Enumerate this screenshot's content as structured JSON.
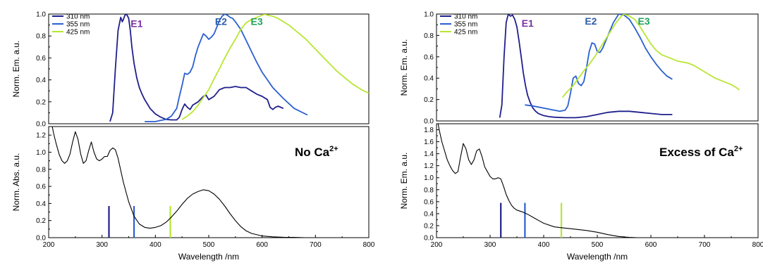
{
  "colors": {
    "series_310": "#1f1f8c",
    "series_355": "#2a5fd0",
    "series_425": "#b8e632",
    "E1": "#7a2fa3",
    "E2": "#2e5ea8",
    "E3": "#1fa15a",
    "abs": "#000000"
  },
  "legend": [
    "310 nm",
    "355 nm",
    "425 nm"
  ],
  "chart_data": [
    {
      "id": "left-top",
      "type": "line",
      "ylabel": "Norm. Em. a.u.",
      "xlim": [
        200,
        800
      ],
      "ylim": [
        0,
        1.0
      ],
      "yticks": [
        "0.0",
        "0.2",
        "0.4",
        "0.6",
        "0.8",
        "1.0"
      ],
      "peak_labels": [
        {
          "text": "E1",
          "x": 365,
          "y": 0.88,
          "color": "E1"
        },
        {
          "text": "E2",
          "x": 523,
          "y": 0.9,
          "color": "E2"
        },
        {
          "text": "E3",
          "x": 590,
          "y": 0.9,
          "color": "E3"
        }
      ],
      "series": [
        {
          "name": "310 nm",
          "color": "series_310",
          "x": [
            315,
            320,
            325,
            330,
            335,
            338,
            340,
            343,
            346,
            350,
            353,
            356,
            360,
            365,
            370,
            375,
            380,
            385,
            390,
            400,
            410,
            420,
            430,
            440,
            445,
            450,
            455,
            460,
            465,
            470,
            480,
            490,
            495,
            500,
            510,
            520,
            530,
            540,
            550,
            560,
            570,
            580,
            590,
            600,
            610,
            615,
            620,
            625,
            630,
            640
          ],
          "y": [
            0.02,
            0.1,
            0.5,
            0.85,
            0.97,
            0.93,
            0.95,
            0.99,
            1.0,
            0.96,
            0.85,
            0.7,
            0.55,
            0.42,
            0.33,
            0.27,
            0.22,
            0.18,
            0.14,
            0.09,
            0.06,
            0.04,
            0.035,
            0.035,
            0.06,
            0.13,
            0.18,
            0.15,
            0.13,
            0.17,
            0.2,
            0.25,
            0.26,
            0.22,
            0.25,
            0.31,
            0.33,
            0.33,
            0.34,
            0.33,
            0.33,
            0.3,
            0.27,
            0.25,
            0.22,
            0.15,
            0.13,
            0.15,
            0.16,
            0.14
          ]
        },
        {
          "name": "355 nm",
          "color": "series_355",
          "x": [
            380,
            390,
            400,
            410,
            420,
            430,
            440,
            445,
            450,
            455,
            460,
            465,
            470,
            475,
            480,
            485,
            490,
            495,
            500,
            505,
            510,
            515,
            520,
            525,
            530,
            535,
            540,
            545,
            550,
            560,
            570,
            580,
            590,
            600,
            620,
            640,
            660,
            685
          ],
          "y": [
            0.02,
            0.02,
            0.02,
            0.03,
            0.04,
            0.07,
            0.14,
            0.25,
            0.35,
            0.46,
            0.45,
            0.47,
            0.52,
            0.62,
            0.7,
            0.76,
            0.82,
            0.8,
            0.77,
            0.79,
            0.82,
            0.88,
            0.94,
            0.98,
            1.0,
            0.99,
            0.97,
            0.96,
            0.93,
            0.86,
            0.76,
            0.66,
            0.56,
            0.47,
            0.33,
            0.23,
            0.14,
            0.08
          ]
        },
        {
          "name": "425 nm",
          "color": "series_425",
          "x": [
            450,
            460,
            470,
            480,
            490,
            500,
            510,
            520,
            530,
            540,
            550,
            560,
            570,
            580,
            590,
            600,
            605,
            610,
            620,
            630,
            640,
            650,
            660,
            670,
            680,
            690,
            700,
            710,
            720,
            730,
            740,
            750,
            760,
            770,
            780,
            790,
            800
          ],
          "y": [
            0.04,
            0.07,
            0.11,
            0.17,
            0.24,
            0.31,
            0.41,
            0.5,
            0.6,
            0.69,
            0.77,
            0.86,
            0.92,
            0.95,
            0.97,
            0.99,
            1.0,
            0.99,
            0.98,
            0.96,
            0.93,
            0.9,
            0.86,
            0.82,
            0.78,
            0.73,
            0.68,
            0.63,
            0.58,
            0.53,
            0.48,
            0.44,
            0.4,
            0.36,
            0.33,
            0.3,
            0.28
          ]
        }
      ]
    },
    {
      "id": "left-bottom",
      "type": "line",
      "xlabel": "Wavelength  /nm",
      "ylabel": "Norm. Abs. a.u.",
      "xlim": [
        200,
        800
      ],
      "ylim": [
        0,
        1.3
      ],
      "xticks": [
        "200",
        "300",
        "400",
        "500",
        "600",
        "700",
        "800"
      ],
      "yticks": [
        "0.0",
        "0.2",
        "0.4",
        "0.6",
        "0.8",
        "1.0",
        "1.2"
      ],
      "annotation": {
        "text": "No Ca",
        "sup": "2+"
      },
      "excitation_lines": [
        {
          "x": 313,
          "height": 0.37,
          "color": "series_310"
        },
        {
          "x": 360,
          "height": 0.37,
          "color": "series_355"
        },
        {
          "x": 428,
          "height": 0.37,
          "color": "series_425"
        }
      ],
      "series": [
        {
          "name": "",
          "color": "abs",
          "x": [
            205,
            210,
            215,
            220,
            225,
            230,
            235,
            240,
            245,
            250,
            255,
            260,
            265,
            270,
            275,
            280,
            285,
            290,
            295,
            300,
            305,
            310,
            315,
            320,
            325,
            330,
            340,
            350,
            360,
            370,
            380,
            390,
            400,
            410,
            420,
            430,
            440,
            450,
            460,
            470,
            480,
            490,
            500,
            510,
            520,
            530,
            540,
            550,
            560,
            570,
            580,
            600,
            620,
            640,
            660,
            680,
            700
          ],
          "y": [
            1.35,
            1.2,
            1.08,
            0.97,
            0.9,
            0.87,
            0.9,
            0.98,
            1.12,
            1.24,
            1.15,
            0.98,
            0.87,
            0.9,
            1.02,
            1.12,
            1.0,
            0.92,
            0.9,
            0.92,
            0.95,
            0.95,
            1.02,
            1.05,
            1.03,
            0.93,
            0.65,
            0.42,
            0.25,
            0.16,
            0.12,
            0.11,
            0.12,
            0.14,
            0.18,
            0.24,
            0.31,
            0.39,
            0.46,
            0.51,
            0.54,
            0.56,
            0.55,
            0.51,
            0.45,
            0.37,
            0.28,
            0.2,
            0.13,
            0.08,
            0.05,
            0.02,
            0.01,
            0.005,
            0.003,
            0.0,
            0.0
          ]
        }
      ]
    },
    {
      "id": "right-top",
      "type": "line",
      "ylabel": "Norm. Em. a.u.",
      "xlim": [
        200,
        800
      ],
      "ylim": [
        0,
        1.0
      ],
      "yticks": [
        "0.0",
        "0.2",
        "0.4",
        "0.6",
        "0.8",
        "1.0"
      ],
      "peak_labels": [
        {
          "text": "E1",
          "x": 370,
          "y": 0.88,
          "color": "E1"
        },
        {
          "text": "E2",
          "x": 488,
          "y": 0.9,
          "color": "E2"
        },
        {
          "text": "E3",
          "x": 587,
          "y": 0.9,
          "color": "E3"
        }
      ],
      "series": [
        {
          "name": "310 nm",
          "color": "series_310",
          "x": [
            318,
            322,
            326,
            330,
            334,
            338,
            342,
            346,
            350,
            354,
            358,
            362,
            366,
            370,
            375,
            380,
            385,
            390,
            395,
            400,
            410,
            420,
            440,
            460,
            480,
            500,
            520,
            540,
            560,
            580,
            600,
            620,
            640
          ],
          "y": [
            0.03,
            0.15,
            0.6,
            0.92,
            1.0,
            0.98,
            0.99,
            0.95,
            0.88,
            0.75,
            0.6,
            0.45,
            0.33,
            0.24,
            0.17,
            0.12,
            0.09,
            0.07,
            0.06,
            0.05,
            0.04,
            0.035,
            0.03,
            0.03,
            0.04,
            0.06,
            0.08,
            0.09,
            0.09,
            0.08,
            0.07,
            0.06,
            0.06
          ]
        },
        {
          "name": "355 nm",
          "color": "series_355",
          "x": [
            365,
            380,
            400,
            420,
            430,
            440,
            445,
            450,
            455,
            460,
            465,
            470,
            475,
            480,
            485,
            490,
            495,
            500,
            505,
            510,
            520,
            530,
            540,
            550,
            560,
            570,
            580,
            590,
            600,
            610,
            620,
            630,
            640
          ],
          "y": [
            0.15,
            0.14,
            0.12,
            0.1,
            0.09,
            0.1,
            0.14,
            0.26,
            0.4,
            0.42,
            0.35,
            0.33,
            0.37,
            0.5,
            0.65,
            0.73,
            0.72,
            0.65,
            0.64,
            0.68,
            0.8,
            0.92,
            1.0,
            0.99,
            0.95,
            0.87,
            0.78,
            0.68,
            0.6,
            0.53,
            0.47,
            0.42,
            0.39
          ]
        },
        {
          "name": "425 nm",
          "color": "series_425",
          "x": [
            435,
            445,
            455,
            465,
            475,
            485,
            495,
            505,
            515,
            525,
            535,
            545,
            550,
            555,
            560,
            570,
            580,
            590,
            600,
            610,
            620,
            630,
            640,
            650,
            660,
            670,
            680,
            690,
            700,
            710,
            720,
            730,
            740,
            750,
            760,
            765
          ],
          "y": [
            0.22,
            0.28,
            0.33,
            0.4,
            0.47,
            0.53,
            0.6,
            0.68,
            0.76,
            0.84,
            0.92,
            0.98,
            1.0,
            0.99,
            0.98,
            0.95,
            0.88,
            0.8,
            0.72,
            0.66,
            0.62,
            0.6,
            0.58,
            0.56,
            0.55,
            0.54,
            0.52,
            0.49,
            0.46,
            0.43,
            0.4,
            0.38,
            0.36,
            0.34,
            0.31,
            0.29
          ]
        }
      ]
    },
    {
      "id": "right-bottom",
      "type": "line",
      "xlabel": "Wavelength  /nm",
      "ylabel": "Norm. Em. a.u.",
      "xlim": [
        200,
        800
      ],
      "ylim": [
        0,
        1.9
      ],
      "xticks": [
        "200",
        "300",
        "400",
        "500",
        "600",
        "700",
        "800"
      ],
      "yticks": [
        "0.0",
        "0.2",
        "0.4",
        "0.6",
        "0.8",
        "1.0",
        "1.2",
        "1.4",
        "1.6",
        "1.8"
      ],
      "annotation": {
        "text": "Excess of Ca",
        "sup": "2+"
      },
      "excitation_lines": [
        {
          "x": 320,
          "height": 0.58,
          "color": "series_310"
        },
        {
          "x": 365,
          "height": 0.58,
          "color": "series_355"
        },
        {
          "x": 433,
          "height": 0.58,
          "color": "series_425"
        }
      ],
      "series": [
        {
          "name": "",
          "color": "abs",
          "x": [
            202,
            205,
            210,
            215,
            220,
            225,
            230,
            235,
            240,
            245,
            250,
            255,
            260,
            265,
            270,
            275,
            280,
            285,
            290,
            295,
            300,
            305,
            310,
            315,
            320,
            325,
            330,
            335,
            340,
            345,
            350,
            360,
            370,
            380,
            390,
            400,
            420,
            440,
            460,
            480,
            500,
            520,
            540,
            560,
            575
          ],
          "y": [
            1.95,
            1.8,
            1.6,
            1.45,
            1.3,
            1.2,
            1.12,
            1.07,
            1.1,
            1.35,
            1.57,
            1.48,
            1.3,
            1.22,
            1.3,
            1.45,
            1.48,
            1.35,
            1.18,
            1.1,
            1.02,
            0.98,
            0.98,
            1.0,
            0.98,
            0.86,
            0.72,
            0.62,
            0.54,
            0.49,
            0.46,
            0.43,
            0.39,
            0.34,
            0.29,
            0.24,
            0.18,
            0.16,
            0.14,
            0.12,
            0.09,
            0.05,
            0.02,
            0.005,
            0.0
          ]
        }
      ]
    }
  ]
}
